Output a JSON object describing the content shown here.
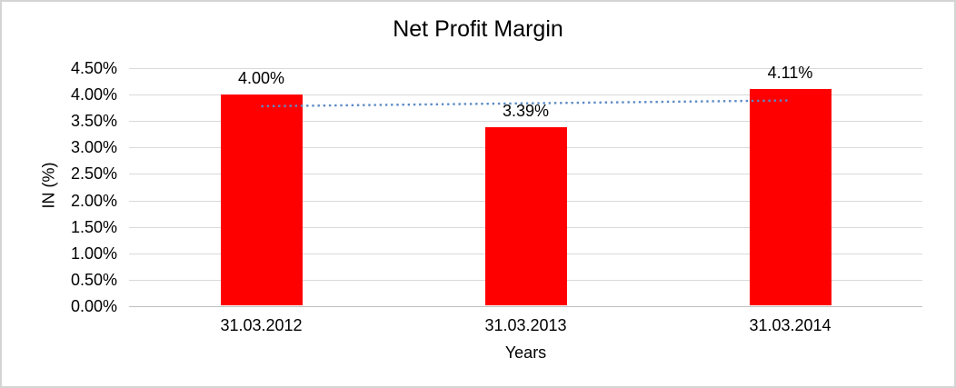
{
  "chart_data": {
    "type": "bar",
    "title": "Net Profit Margin",
    "xlabel": "Years",
    "ylabel": "IN (%)",
    "categories": [
      "31.03.2012",
      "31.03.2013",
      "31.03.2014"
    ],
    "values": [
      4.0,
      3.39,
      4.11
    ],
    "data_labels": [
      "4.00%",
      "3.39%",
      "4.11%"
    ],
    "yticks": [
      {
        "label": "0.00%",
        "value": 0.0
      },
      {
        "label": "0.50%",
        "value": 0.5
      },
      {
        "label": "1.00%",
        "value": 1.0
      },
      {
        "label": "1.50%",
        "value": 1.5
      },
      {
        "label": "2.00%",
        "value": 2.0
      },
      {
        "label": "2.50%",
        "value": 2.5
      },
      {
        "label": "3.00%",
        "value": 3.0
      },
      {
        "label": "3.50%",
        "value": 3.5
      },
      {
        "label": "4.00%",
        "value": 4.0
      },
      {
        "label": "4.50%",
        "value": 4.5
      }
    ],
    "ylim": [
      0,
      4.5
    ],
    "grid": true,
    "legend": false,
    "bar_color": "#ff0000",
    "gridline_color": "#d9d9d9",
    "axis_line_color": "#bfbfbf",
    "trendline": {
      "type": "linear",
      "style": "dotted",
      "color": "#5b8ac6",
      "start_value": 3.78,
      "end_value": 3.89
    }
  }
}
